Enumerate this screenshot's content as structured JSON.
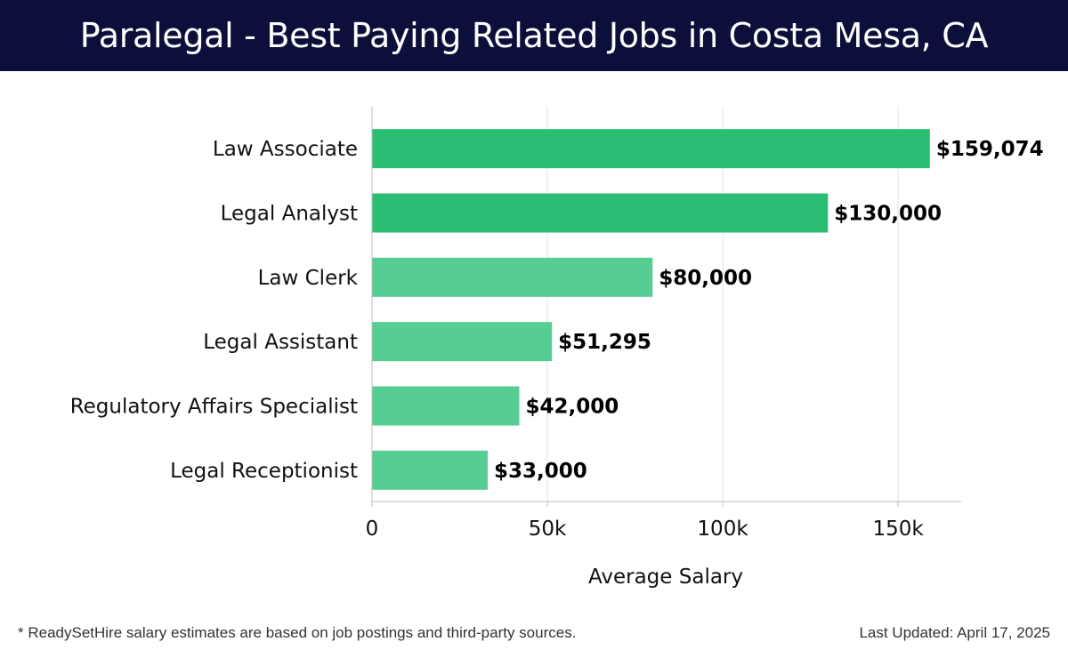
{
  "header": {
    "title": "Paralegal - Best Paying Related Jobs in Costa Mesa, CA"
  },
  "chart_data": {
    "type": "bar",
    "orientation": "horizontal",
    "categories": [
      "Law Associate",
      "Legal Analyst",
      "Law Clerk",
      "Legal Assistant",
      "Regulatory Affairs Specialist",
      "Legal Receptionist"
    ],
    "values": [
      159074,
      130000,
      80000,
      51295,
      42000,
      33000
    ],
    "value_labels": [
      "$159,074",
      "$130,000",
      "$80,000",
      "$51,295",
      "$42,000",
      "$33,000"
    ],
    "xlabel": "Average Salary",
    "xlim": [
      0,
      168000
    ],
    "xticks": [
      0,
      50000,
      100000,
      150000
    ],
    "xtick_labels": [
      "0",
      "50k",
      "100k",
      "150k"
    ],
    "grid": "vertical",
    "colors": {
      "high": "#2bbd74",
      "low": "#55cd93"
    }
  },
  "footer": {
    "note": "* ReadySetHire salary estimates are based on job postings and third-party sources.",
    "updated": "Last Updated: April 17, 2025"
  }
}
